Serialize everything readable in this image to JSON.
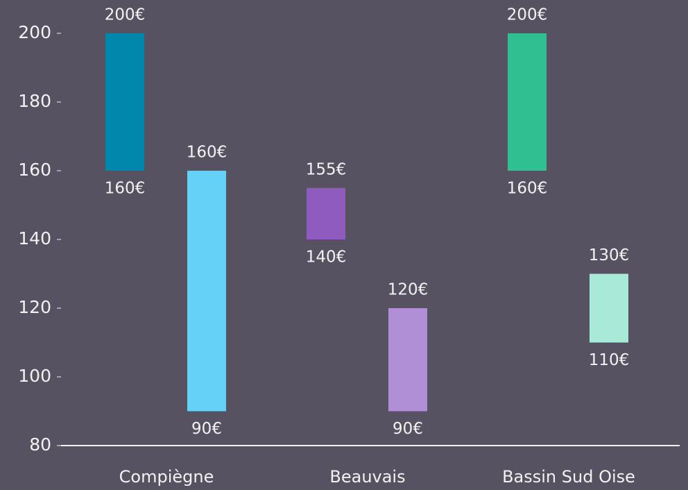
{
  "chart_data": {
    "type": "floating-bar",
    "categories": [
      "Compiègne",
      "Beauvais",
      "Bassin Sud Oise"
    ],
    "series": [
      {
        "low": [
          160,
          140,
          160
        ],
        "high": [
          200,
          155,
          200
        ],
        "low_labels": [
          "160€",
          "140€",
          "160€"
        ],
        "high_labels": [
          "200€",
          "155€",
          "200€"
        ],
        "colors": [
          "#0087ab",
          "#8f5bbf",
          "#2fbf91"
        ]
      },
      {
        "low": [
          90,
          90,
          110
        ],
        "high": [
          160,
          120,
          130
        ],
        "low_labels": [
          "90€",
          "90€",
          "110€"
        ],
        "high_labels": [
          "160€",
          "120€",
          "130€"
        ],
        "colors": [
          "#66d1f7",
          "#b18fd7",
          "#a9e9d7"
        ]
      }
    ],
    "ylim": [
      80,
      200
    ],
    "yticks": [
      80,
      100,
      120,
      140,
      160,
      180,
      200
    ],
    "grid": false
  }
}
